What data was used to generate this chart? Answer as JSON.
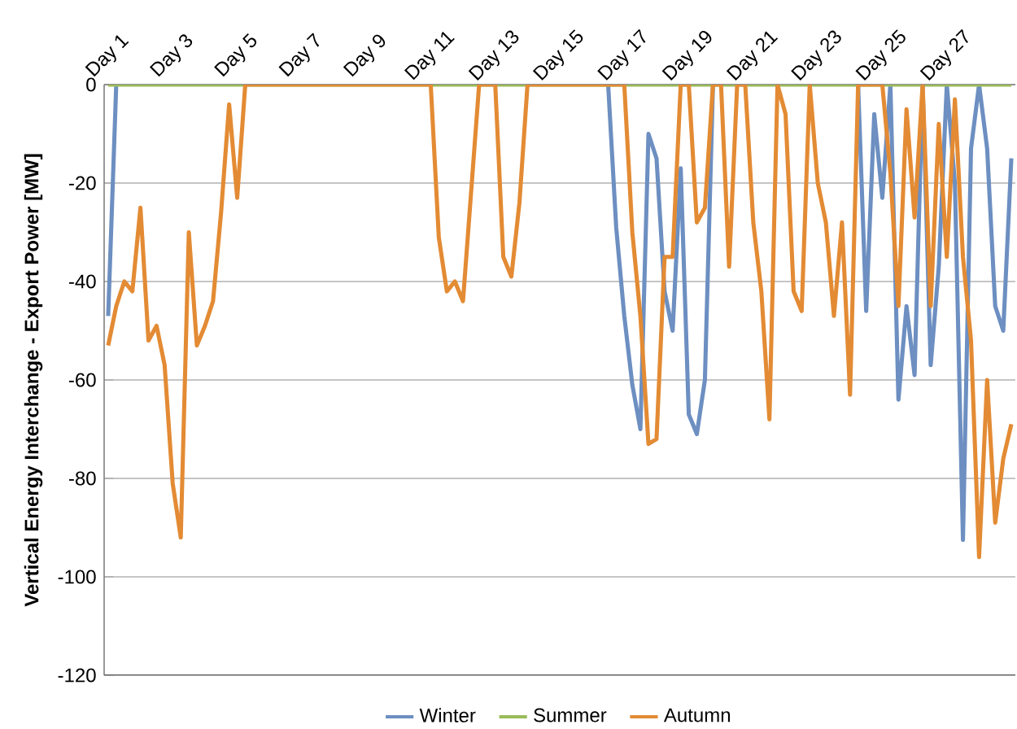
{
  "chart_data": {
    "type": "line",
    "ylabel": "Vertical Energy Interchange - Export Power [MW]",
    "categories": [
      "Day 1",
      null,
      null,
      null,
      null,
      null,
      null,
      null,
      "Day 3",
      null,
      null,
      null,
      null,
      null,
      null,
      null,
      "Day 5",
      null,
      null,
      null,
      null,
      null,
      null,
      null,
      "Day 7",
      null,
      null,
      null,
      null,
      null,
      null,
      null,
      "Day 9",
      null,
      null,
      null,
      null,
      null,
      null,
      null,
      "Day 11",
      null,
      null,
      null,
      null,
      null,
      null,
      null,
      "Day 13",
      null,
      null,
      null,
      null,
      null,
      null,
      null,
      "Day 15",
      null,
      null,
      null,
      null,
      null,
      null,
      null,
      "Day 17",
      null,
      null,
      null,
      null,
      null,
      null,
      null,
      "Day 19",
      null,
      null,
      null,
      null,
      null,
      null,
      null,
      "Day 21",
      null,
      null,
      null,
      null,
      null,
      null,
      null,
      "Day 23",
      null,
      null,
      null,
      null,
      null,
      null,
      null,
      "Day 25",
      null,
      null,
      null,
      null,
      null,
      null,
      null,
      "Day 27",
      null,
      null,
      null,
      null,
      null,
      null,
      null,
      null
    ],
    "ylim": [
      -120,
      0
    ],
    "yticks": [
      -120,
      -100,
      -80,
      -60,
      -40,
      -20,
      0
    ],
    "grid": "y",
    "legend": "bottom",
    "series": [
      {
        "name": "Winter",
        "color": "#6d8fc1",
        "values": [
          -47,
          0,
          null,
          null,
          null,
          null,
          null,
          null,
          null,
          null,
          null,
          null,
          null,
          null,
          null,
          null,
          null,
          null,
          null,
          null,
          null,
          null,
          null,
          null,
          null,
          null,
          null,
          null,
          null,
          null,
          null,
          null,
          null,
          null,
          null,
          null,
          null,
          null,
          null,
          null,
          null,
          null,
          null,
          null,
          null,
          null,
          null,
          null,
          null,
          null,
          null,
          null,
          null,
          null,
          null,
          null,
          null,
          null,
          null,
          null,
          null,
          null,
          0,
          -29,
          -47,
          -61,
          -70,
          -10,
          -15,
          -42,
          -50,
          -17,
          -67,
          -71,
          -60,
          0,
          null,
          null,
          null,
          null,
          null,
          null,
          null,
          null,
          null,
          null,
          null,
          null,
          null,
          null,
          null,
          null,
          null,
          0,
          -46,
          -6,
          -23,
          0,
          -64,
          -45,
          -59,
          0,
          -57,
          -37,
          0,
          -20,
          -92.5,
          -13,
          0,
          -13,
          -45,
          -50,
          -15
        ]
      },
      {
        "name": "Summer",
        "color": "#9bbb59",
        "values": [
          0,
          0,
          0,
          0,
          0,
          0,
          0,
          0,
          0,
          0,
          0,
          0,
          0,
          0,
          0,
          0,
          0,
          0,
          0,
          0,
          0,
          0,
          0,
          0,
          0,
          0,
          0,
          0,
          0,
          0,
          0,
          0,
          0,
          0,
          0,
          0,
          0,
          0,
          0,
          0,
          0,
          0,
          0,
          0,
          0,
          0,
          0,
          0,
          0,
          0,
          0,
          0,
          0,
          0,
          0,
          0,
          0,
          0,
          0,
          0,
          0,
          0,
          0,
          0,
          0,
          0,
          0,
          0,
          0,
          0,
          0,
          0,
          0,
          0,
          0,
          0,
          0,
          0,
          0,
          0,
          0,
          0,
          0,
          0,
          0,
          0,
          0,
          0,
          0,
          0,
          0,
          0,
          0,
          0,
          0,
          0,
          0,
          0,
          0,
          0,
          0,
          0,
          0,
          0,
          0,
          0,
          0,
          0,
          0,
          0,
          0,
          0,
          0
        ]
      },
      {
        "name": "Autumn",
        "color": "#e38b34",
        "values": [
          -53,
          -45,
          -40,
          -42,
          -25,
          -52,
          -49,
          -57,
          -81,
          -92,
          -30,
          -53,
          -49,
          -44,
          -26,
          -4,
          -23,
          0,
          0,
          0,
          0,
          0,
          0,
          0,
          0,
          0,
          0,
          0,
          0,
          0,
          0,
          0,
          0,
          0,
          0,
          0,
          0,
          0,
          0,
          0,
          0,
          -31,
          -42,
          -40,
          -44,
          -22,
          0,
          0,
          0,
          -35,
          -39,
          -24,
          0,
          0,
          0,
          0,
          0,
          0,
          0,
          0,
          0,
          0,
          0,
          0,
          0,
          -30,
          -47,
          -73,
          -72,
          -35,
          -35,
          0,
          0,
          -28,
          -25,
          0,
          0,
          -37,
          0,
          0,
          -28,
          -42,
          -68,
          0,
          -6,
          -42,
          -46,
          0,
          -20,
          -28,
          -47,
          -28,
          -63,
          0,
          0,
          0,
          0,
          -18,
          -45,
          -5,
          -27,
          0,
          -45,
          -8,
          -35,
          -3,
          -35,
          -52,
          -96,
          -60,
          -89,
          -76,
          -69
        ]
      }
    ]
  }
}
